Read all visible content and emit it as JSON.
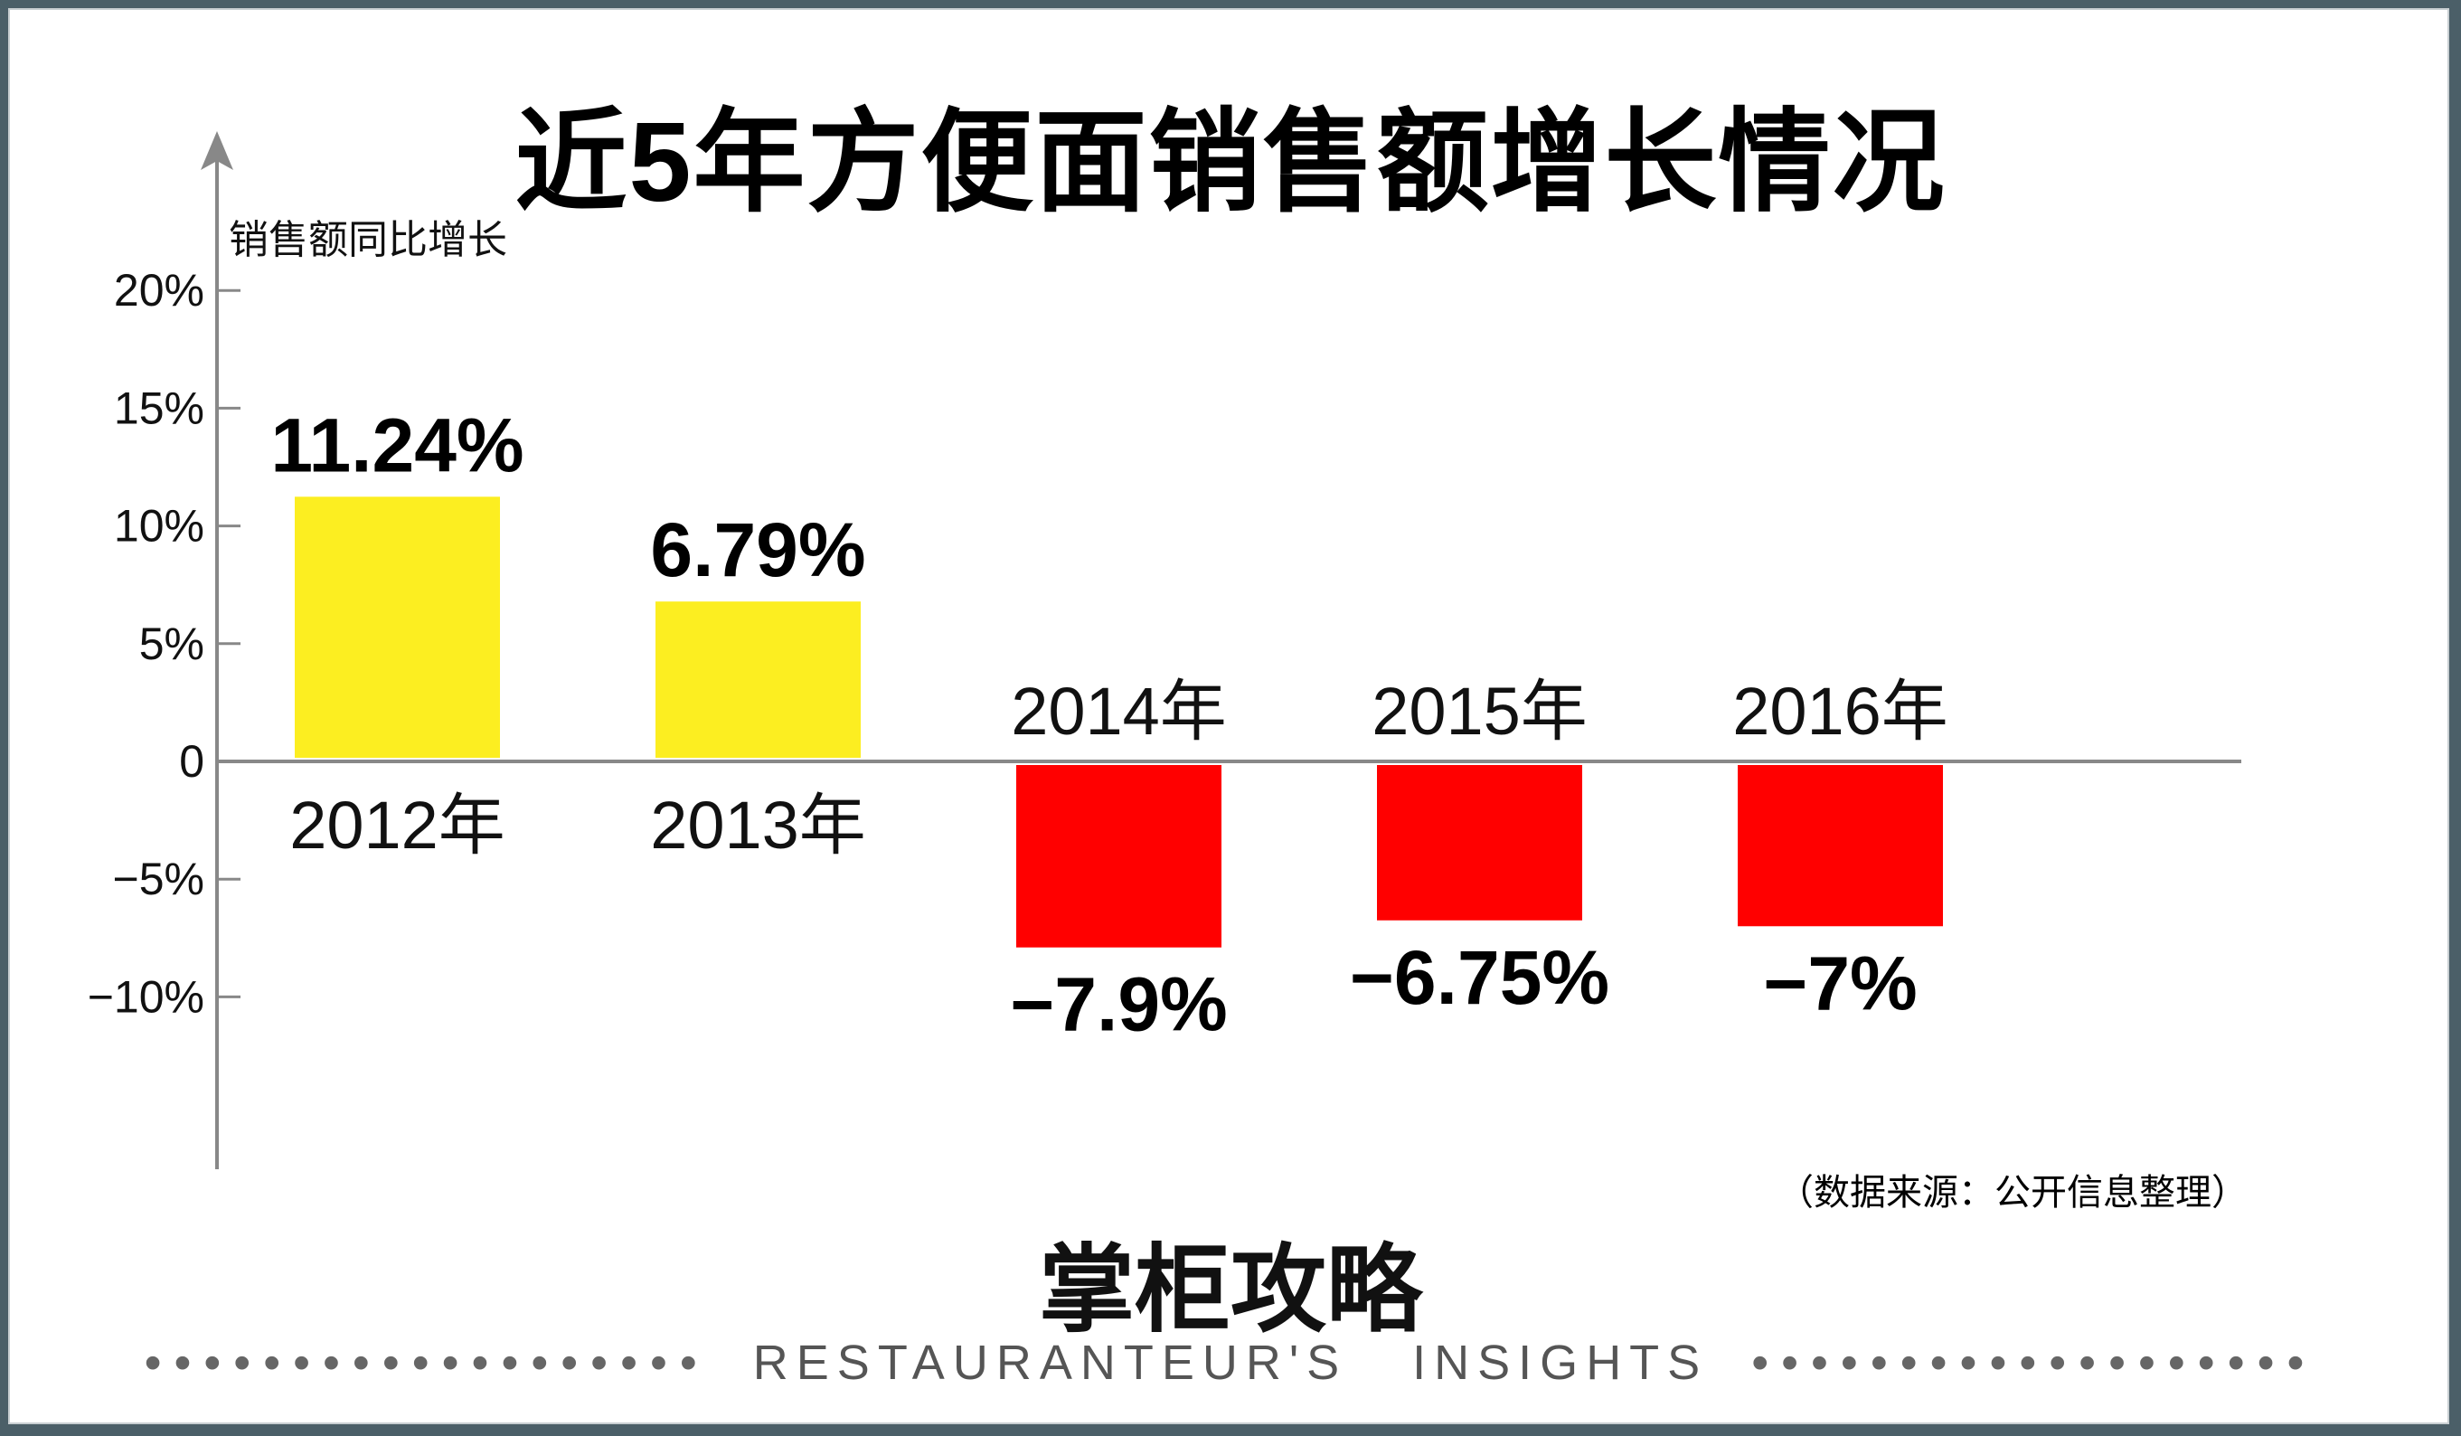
{
  "title": "近5年方便面销售额增长情况",
  "chart_data": {
    "type": "bar",
    "title": "近5年方便面销售额增长情况",
    "ylabel": "销售额同比增长",
    "xlabel": "",
    "categories": [
      "2012年",
      "2013年",
      "2014年",
      "2015年",
      "2016年"
    ],
    "values": [
      11.24,
      6.79,
      -7.9,
      -6.75,
      -7
    ],
    "value_labels": [
      "11.24%",
      "6.79%",
      "−7.9%",
      "−6.75%",
      "−7%"
    ],
    "yticks": [
      20,
      15,
      10,
      5,
      0,
      -5,
      -10
    ],
    "ytick_labels": [
      "20%",
      "15%",
      "10%",
      "5%",
      "0",
      "−5%",
      "−10%"
    ],
    "ylim": [
      -17,
      25
    ],
    "grid": false,
    "colors": {
      "positive": "#fcee21",
      "negative": "#ff0000",
      "axis": "#888888"
    }
  },
  "source": "（数据来源：公开信息整理）",
  "logo": "掌柜攻略",
  "tagline": "RESTAURANTEUR'S   INSIGHTS",
  "dots": "•••••••••••••••••••"
}
